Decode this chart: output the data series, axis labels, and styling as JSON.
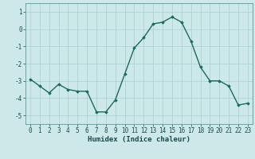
{
  "x": [
    0,
    1,
    2,
    3,
    4,
    5,
    6,
    7,
    8,
    9,
    10,
    11,
    12,
    13,
    14,
    15,
    16,
    17,
    18,
    19,
    20,
    21,
    22,
    23
  ],
  "y": [
    -2.9,
    -3.3,
    -3.7,
    -3.2,
    -3.5,
    -3.6,
    -3.6,
    -4.8,
    -4.8,
    -4.1,
    -2.6,
    -1.1,
    -0.5,
    0.3,
    0.4,
    0.7,
    0.4,
    -0.7,
    -2.2,
    -3.0,
    -3.0,
    -3.3,
    -4.4,
    -4.3
  ],
  "line_color": "#1a6b5a",
  "marker": "D",
  "marker_size": 1.8,
  "bg_color": "#cde8e8",
  "grid_color": "#aacece",
  "xlabel": "Humidex (Indice chaleur)",
  "yticks": [
    1,
    0,
    -1,
    -2,
    -3,
    -4,
    -5
  ],
  "xticks": [
    0,
    1,
    2,
    3,
    4,
    5,
    6,
    7,
    8,
    9,
    10,
    11,
    12,
    13,
    14,
    15,
    16,
    17,
    18,
    19,
    20,
    21,
    22,
    23
  ],
  "xlim": [
    -0.5,
    23.5
  ],
  "ylim": [
    -5.5,
    1.5
  ],
  "tick_fontsize": 5.5,
  "xlabel_fontsize": 6.5
}
